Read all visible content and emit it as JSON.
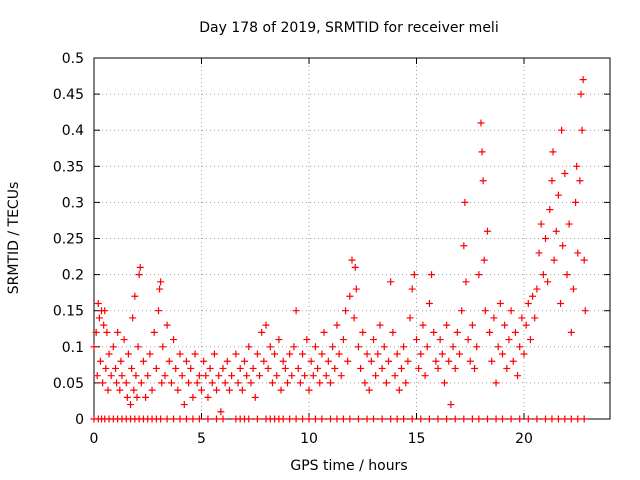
{
  "chart_data": {
    "type": "scatter",
    "title": "Day 178 of 2019, SRMTID for receiver meli",
    "xlabel": "GPS time / hours",
    "ylabel": "SRMTID / TECUs",
    "xlim": [
      0,
      24
    ],
    "ylim": [
      0,
      0.5
    ],
    "x_ticks": [
      "0",
      "5",
      "10",
      "15",
      "20"
    ],
    "y_ticks": [
      "0",
      "0.05",
      "0.1",
      "0.15",
      "0.2",
      "0.25",
      "0.3",
      "0.35",
      "0.4",
      "0.45",
      "0.5"
    ],
    "grid": true,
    "marker": "plus",
    "color": "#ff0000",
    "series": [
      {
        "name": "SRMTID",
        "points": [
          [
            0.0,
            0.1
          ],
          [
            0.1,
            0.12
          ],
          [
            0.15,
            0.06
          ],
          [
            0.2,
            0.16
          ],
          [
            0.25,
            0.14
          ],
          [
            0.3,
            0.08
          ],
          [
            0.35,
            0.15
          ],
          [
            0.4,
            0.05
          ],
          [
            0.45,
            0.13
          ],
          [
            0.5,
            0.15
          ],
          [
            0.55,
            0.07
          ],
          [
            0.6,
            0.12
          ],
          [
            0.65,
            0.04
          ],
          [
            0.7,
            0.09
          ],
          [
            0.8,
            0.06
          ],
          [
            0.9,
            0.1
          ],
          [
            1.0,
            0.07
          ],
          [
            1.05,
            0.05
          ],
          [
            1.1,
            0.12
          ],
          [
            1.2,
            0.04
          ],
          [
            1.25,
            0.08
          ],
          [
            1.3,
            0.06
          ],
          [
            1.4,
            0.11
          ],
          [
            1.5,
            0.05
          ],
          [
            1.55,
            0.03
          ],
          [
            1.6,
            0.09
          ],
          [
            1.7,
            0.02
          ],
          [
            1.75,
            0.07
          ],
          [
            1.8,
            0.14
          ],
          [
            1.85,
            0.04
          ],
          [
            1.9,
            0.17
          ],
          [
            1.95,
            0.06
          ],
          [
            2.0,
            0.03
          ],
          [
            2.05,
            0.1
          ],
          [
            2.1,
            0.2
          ],
          [
            2.15,
            0.21
          ],
          [
            2.2,
            0.05
          ],
          [
            2.3,
            0.08
          ],
          [
            2.4,
            0.03
          ],
          [
            2.5,
            0.06
          ],
          [
            2.6,
            0.09
          ],
          [
            2.7,
            0.04
          ],
          [
            2.8,
            0.12
          ],
          [
            2.9,
            0.07
          ],
          [
            3.0,
            0.15
          ],
          [
            3.05,
            0.18
          ],
          [
            3.1,
            0.19
          ],
          [
            3.15,
            0.05
          ],
          [
            3.2,
            0.1
          ],
          [
            3.3,
            0.06
          ],
          [
            3.4,
            0.13
          ],
          [
            3.5,
            0.08
          ],
          [
            3.6,
            0.05
          ],
          [
            3.7,
            0.11
          ],
          [
            3.8,
            0.07
          ],
          [
            3.9,
            0.04
          ],
          [
            4.0,
            0.09
          ],
          [
            4.1,
            0.06
          ],
          [
            4.2,
            0.02
          ],
          [
            4.3,
            0.08
          ],
          [
            4.4,
            0.05
          ],
          [
            4.5,
            0.07
          ],
          [
            4.6,
            0.03
          ],
          [
            4.7,
            0.09
          ],
          [
            4.8,
            0.05
          ],
          [
            4.9,
            0.06
          ],
          [
            5.0,
            0.04
          ],
          [
            5.1,
            0.08
          ],
          [
            5.2,
            0.06
          ],
          [
            5.3,
            0.03
          ],
          [
            5.4,
            0.07
          ],
          [
            5.5,
            0.05
          ],
          [
            5.6,
            0.09
          ],
          [
            5.7,
            0.04
          ],
          [
            5.8,
            0.06
          ],
          [
            5.9,
            0.01
          ],
          [
            6.0,
            0.07
          ],
          [
            6.1,
            0.05
          ],
          [
            6.2,
            0.08
          ],
          [
            6.3,
            0.04
          ],
          [
            6.4,
            0.06
          ],
          [
            6.6,
            0.09
          ],
          [
            6.7,
            0.05
          ],
          [
            6.8,
            0.07
          ],
          [
            6.9,
            0.04
          ],
          [
            7.0,
            0.08
          ],
          [
            7.1,
            0.06
          ],
          [
            7.2,
            0.1
          ],
          [
            7.3,
            0.05
          ],
          [
            7.4,
            0.07
          ],
          [
            7.5,
            0.03
          ],
          [
            7.6,
            0.09
          ],
          [
            7.7,
            0.06
          ],
          [
            7.8,
            0.12
          ],
          [
            7.9,
            0.08
          ],
          [
            8.0,
            0.13
          ],
          [
            8.1,
            0.07
          ],
          [
            8.2,
            0.1
          ],
          [
            8.3,
            0.05
          ],
          [
            8.4,
            0.09
          ],
          [
            8.5,
            0.06
          ],
          [
            8.6,
            0.11
          ],
          [
            8.7,
            0.04
          ],
          [
            8.8,
            0.08
          ],
          [
            8.9,
            0.07
          ],
          [
            9.0,
            0.05
          ],
          [
            9.1,
            0.09
          ],
          [
            9.2,
            0.06
          ],
          [
            9.3,
            0.1
          ],
          [
            9.4,
            0.15
          ],
          [
            9.5,
            0.07
          ],
          [
            9.6,
            0.05
          ],
          [
            9.7,
            0.09
          ],
          [
            9.8,
            0.06
          ],
          [
            9.9,
            0.11
          ],
          [
            10.0,
            0.04
          ],
          [
            10.1,
            0.08
          ],
          [
            10.2,
            0.06
          ],
          [
            10.3,
            0.1
          ],
          [
            10.4,
            0.07
          ],
          [
            10.5,
            0.05
          ],
          [
            10.6,
            0.09
          ],
          [
            10.7,
            0.12
          ],
          [
            10.8,
            0.06
          ],
          [
            10.9,
            0.08
          ],
          [
            11.0,
            0.05
          ],
          [
            11.1,
            0.1
          ],
          [
            11.2,
            0.07
          ],
          [
            11.3,
            0.13
          ],
          [
            11.4,
            0.09
          ],
          [
            11.5,
            0.06
          ],
          [
            11.6,
            0.11
          ],
          [
            11.7,
            0.15
          ],
          [
            11.8,
            0.08
          ],
          [
            11.9,
            0.17
          ],
          [
            12.0,
            0.22
          ],
          [
            12.1,
            0.14
          ],
          [
            12.15,
            0.21
          ],
          [
            12.2,
            0.18
          ],
          [
            12.3,
            0.1
          ],
          [
            12.4,
            0.07
          ],
          [
            12.5,
            0.12
          ],
          [
            12.6,
            0.05
          ],
          [
            12.7,
            0.09
          ],
          [
            12.8,
            0.04
          ],
          [
            12.9,
            0.08
          ],
          [
            13.0,
            0.11
          ],
          [
            13.1,
            0.06
          ],
          [
            13.2,
            0.09
          ],
          [
            13.3,
            0.13
          ],
          [
            13.4,
            0.07
          ],
          [
            13.5,
            0.1
          ],
          [
            13.6,
            0.05
          ],
          [
            13.7,
            0.08
          ],
          [
            13.8,
            0.19
          ],
          [
            13.9,
            0.12
          ],
          [
            14.0,
            0.06
          ],
          [
            14.1,
            0.09
          ],
          [
            14.2,
            0.04
          ],
          [
            14.3,
            0.07
          ],
          [
            14.4,
            0.1
          ],
          [
            14.5,
            0.05
          ],
          [
            14.6,
            0.08
          ],
          [
            14.7,
            0.14
          ],
          [
            14.8,
            0.18
          ],
          [
            14.9,
            0.2
          ],
          [
            15.0,
            0.11
          ],
          [
            15.1,
            0.07
          ],
          [
            15.2,
            0.09
          ],
          [
            15.3,
            0.13
          ],
          [
            15.4,
            0.06
          ],
          [
            15.5,
            0.1
          ],
          [
            15.6,
            0.16
          ],
          [
            15.7,
            0.2
          ],
          [
            15.8,
            0.12
          ],
          [
            15.9,
            0.08
          ],
          [
            16.0,
            0.07
          ],
          [
            16.1,
            0.11
          ],
          [
            16.2,
            0.09
          ],
          [
            16.3,
            0.05
          ],
          [
            16.4,
            0.13
          ],
          [
            16.5,
            0.08
          ],
          [
            16.6,
            0.02
          ],
          [
            16.7,
            0.1
          ],
          [
            16.8,
            0.07
          ],
          [
            16.9,
            0.12
          ],
          [
            17.0,
            0.09
          ],
          [
            17.1,
            0.15
          ],
          [
            17.2,
            0.24
          ],
          [
            17.25,
            0.3
          ],
          [
            17.3,
            0.19
          ],
          [
            17.4,
            0.11
          ],
          [
            17.5,
            0.08
          ],
          [
            17.6,
            0.13
          ],
          [
            17.7,
            0.07
          ],
          [
            17.8,
            0.1
          ],
          [
            17.9,
            0.2
          ],
          [
            18.0,
            0.41
          ],
          [
            18.05,
            0.37
          ],
          [
            18.1,
            0.33
          ],
          [
            18.15,
            0.22
          ],
          [
            18.2,
            0.15
          ],
          [
            18.3,
            0.26
          ],
          [
            18.4,
            0.12
          ],
          [
            18.5,
            0.08
          ],
          [
            18.6,
            0.14
          ],
          [
            18.7,
            0.05
          ],
          [
            18.8,
            0.1
          ],
          [
            18.9,
            0.16
          ],
          [
            19.0,
            0.09
          ],
          [
            19.1,
            0.13
          ],
          [
            19.2,
            0.07
          ],
          [
            19.3,
            0.11
          ],
          [
            19.4,
            0.15
          ],
          [
            19.5,
            0.08
          ],
          [
            19.6,
            0.12
          ],
          [
            19.7,
            0.06
          ],
          [
            19.8,
            0.1
          ],
          [
            19.9,
            0.14
          ],
          [
            20.0,
            0.09
          ],
          [
            20.1,
            0.13
          ],
          [
            20.2,
            0.16
          ],
          [
            20.3,
            0.11
          ],
          [
            20.4,
            0.17
          ],
          [
            20.5,
            0.14
          ],
          [
            20.6,
            0.18
          ],
          [
            20.7,
            0.23
          ],
          [
            20.8,
            0.27
          ],
          [
            20.9,
            0.2
          ],
          [
            21.0,
            0.25
          ],
          [
            21.1,
            0.19
          ],
          [
            21.2,
            0.29
          ],
          [
            21.3,
            0.33
          ],
          [
            21.35,
            0.37
          ],
          [
            21.4,
            0.22
          ],
          [
            21.5,
            0.26
          ],
          [
            21.6,
            0.31
          ],
          [
            21.7,
            0.16
          ],
          [
            21.75,
            0.4
          ],
          [
            21.8,
            0.24
          ],
          [
            21.9,
            0.34
          ],
          [
            22.0,
            0.2
          ],
          [
            22.1,
            0.27
          ],
          [
            22.2,
            0.12
          ],
          [
            22.3,
            0.18
          ],
          [
            22.4,
            0.3
          ],
          [
            22.45,
            0.35
          ],
          [
            22.5,
            0.23
          ],
          [
            22.6,
            0.33
          ],
          [
            22.65,
            0.45
          ],
          [
            22.7,
            0.4
          ],
          [
            22.75,
            0.47
          ],
          [
            22.8,
            0.22
          ],
          [
            22.85,
            0.15
          ]
        ]
      }
    ],
    "zero_band": [
      0.0,
      0.2,
      0.35,
      0.5,
      0.7,
      0.9,
      1.1,
      1.3,
      1.5,
      1.7,
      1.9,
      2.1,
      2.3,
      2.5,
      2.7,
      2.9,
      3.1,
      3.4,
      3.7,
      4.0,
      4.3,
      4.6,
      4.9,
      5.3,
      5.7,
      6.0,
      6.6,
      6.8,
      7.0,
      7.2,
      7.6,
      8.0,
      8.2,
      8.4,
      8.6,
      8.8,
      9.1,
      9.4,
      9.7,
      10.0,
      10.3,
      10.6,
      11.0,
      11.3,
      11.6,
      11.9,
      12.3,
      12.7,
      13.0,
      13.4,
      13.8,
      14.1,
      14.4,
      14.8,
      15.2,
      15.6,
      16.0,
      16.4,
      16.8,
      17.2,
      17.6,
      17.9,
      18.3,
      18.7,
      19.0,
      19.4,
      19.8,
      20.2,
      20.6,
      21.0,
      21.3,
      21.6,
      21.9,
      22.2,
      22.5,
      22.8
    ]
  }
}
